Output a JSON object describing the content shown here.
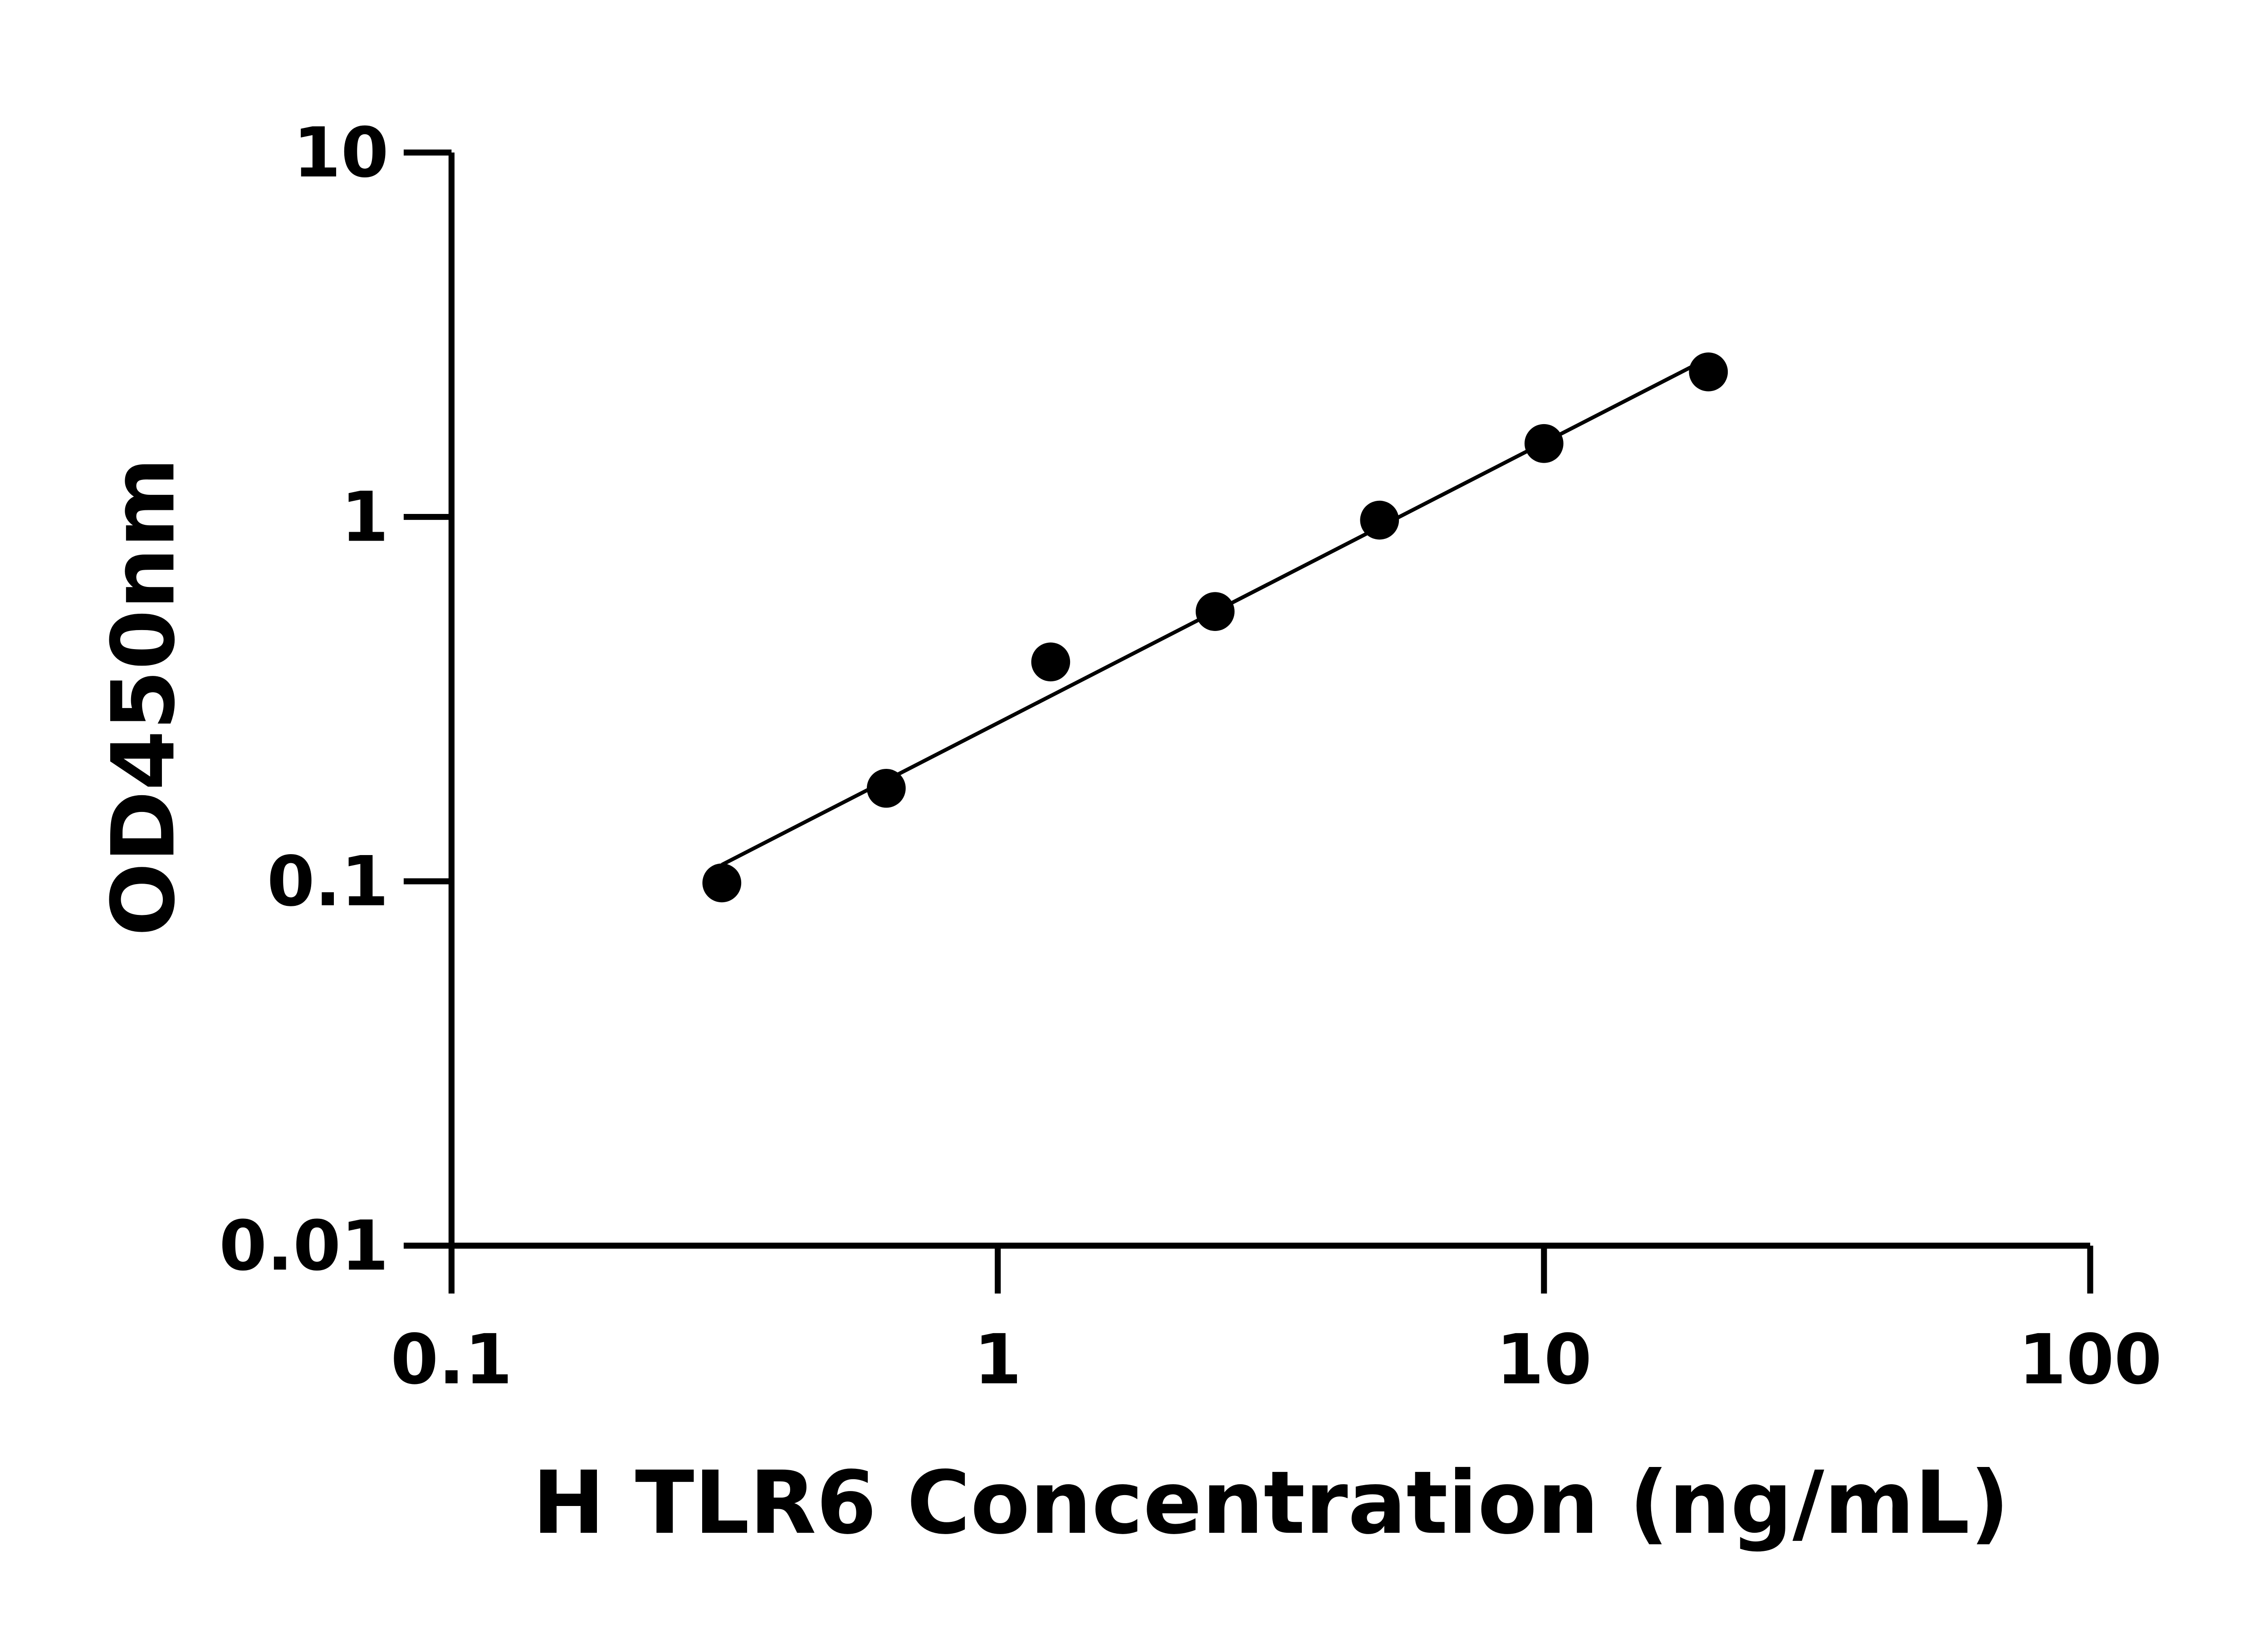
{
  "chart_data": {
    "type": "scatter",
    "title": "",
    "xlabel": "H TLR6 Concentration (ng/mL)",
    "ylabel": "OD450nm",
    "x_scale": "log",
    "y_scale": "log",
    "xlim": [
      0.1,
      100
    ],
    "ylim": [
      0.01,
      10
    ],
    "x_ticks": [
      "0.1",
      "1",
      "10",
      "100"
    ],
    "y_ticks": [
      "0.01",
      "0.1",
      "1",
      "10"
    ],
    "grid": false,
    "fit_line": true,
    "point_color": "#000000",
    "line_color": "#000000",
    "x": [
      0.3125,
      0.625,
      1.25,
      2.5,
      5,
      10,
      20
    ],
    "y": [
      0.099,
      0.18,
      0.4,
      0.55,
      0.98,
      1.59,
      2.5
    ]
  }
}
